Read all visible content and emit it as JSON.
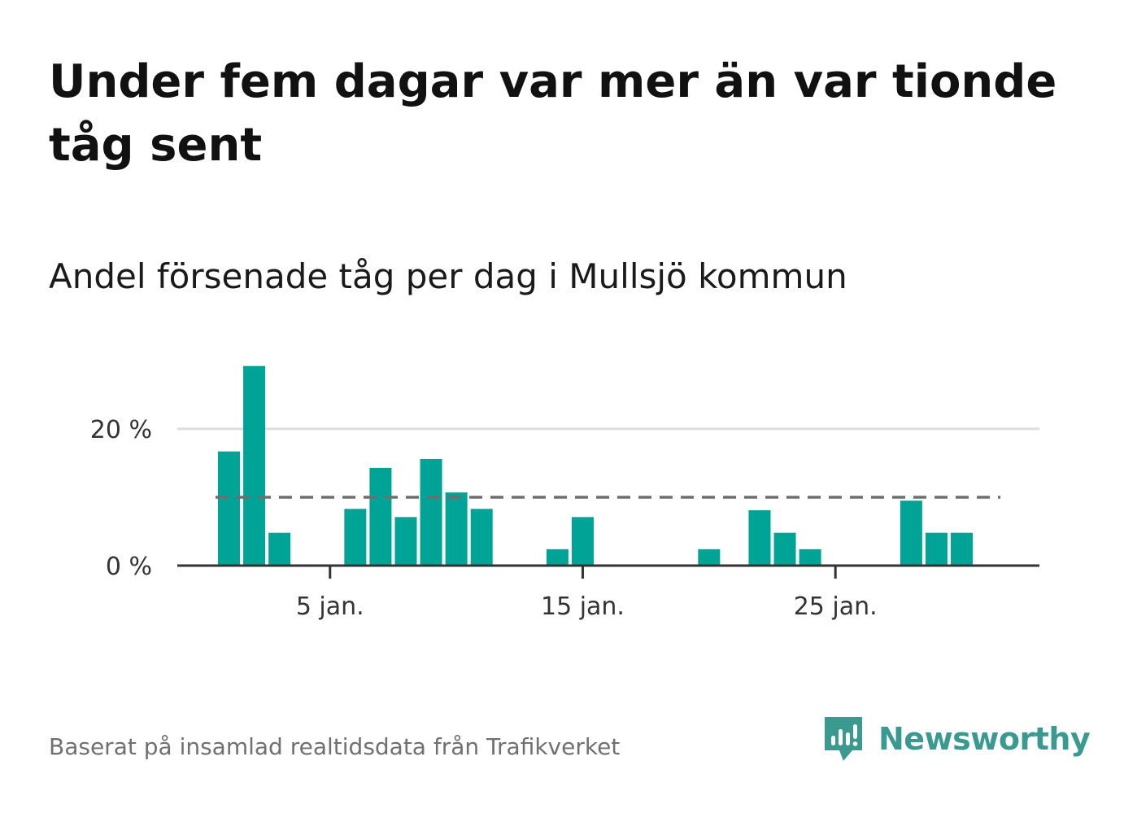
{
  "title": "Under fem dagar var mer än var tionde tåg sent",
  "subtitle": "Andel försenade tåg per dag i Mullsjö kommun",
  "source": "Baserat på insamlad realtidsdata från Trafikverket",
  "brand": "Newsworthy",
  "colors": {
    "bar": "#00a497",
    "reference": "#6e6e6e",
    "grid": "#dddddd",
    "axis": "#333333",
    "brand": "#3a9a8f"
  },
  "chart_data": {
    "type": "bar",
    "x": [
      1,
      2,
      3,
      4,
      5,
      6,
      7,
      8,
      9,
      10,
      11,
      12,
      13,
      14,
      15,
      16,
      17,
      18,
      19,
      20,
      21,
      22,
      23,
      24,
      25,
      26,
      27,
      28,
      29,
      30,
      31
    ],
    "x_unit": "day of January",
    "values": [
      16.7,
      29.2,
      4.8,
      0,
      0,
      8.3,
      14.3,
      7.1,
      15.6,
      10.7,
      8.3,
      0,
      0,
      2.4,
      7.1,
      0,
      0,
      0,
      0,
      2.4,
      0,
      8.1,
      4.8,
      2.4,
      0,
      0,
      0,
      9.5,
      4.8,
      4.8,
      0
    ],
    "reference_line": 10,
    "x_ticks": [
      {
        "x": 5,
        "label": "5 jan."
      },
      {
        "x": 15,
        "label": "15 jan."
      },
      {
        "x": 25,
        "label": "25 jan."
      }
    ],
    "y_ticks": [
      {
        "y": 0,
        "label": "0 %"
      },
      {
        "y": 20,
        "label": "20 %"
      }
    ],
    "ylim": [
      0,
      30
    ],
    "grid": true,
    "legend": "none"
  }
}
